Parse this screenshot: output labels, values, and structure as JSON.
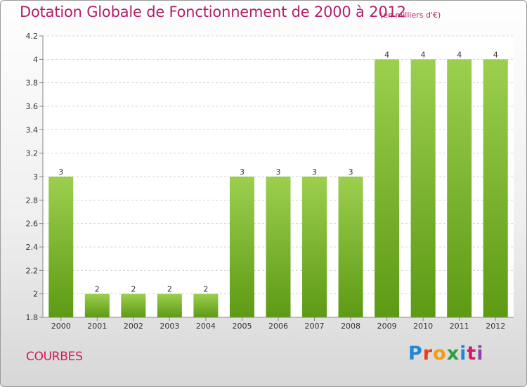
{
  "header": {
    "title": "Dotation Globale de Fonctionnement de 2000 à 2012",
    "unit": "(en milliers d'€)"
  },
  "commune": "COURBES",
  "logo": {
    "text": "Proxiti",
    "colors": [
      "#1e88d6",
      "#e8401c",
      "#f39c12",
      "#2e9e3e",
      "#1e88d6",
      "#d81b60",
      "#8e44ad"
    ]
  },
  "chart_data": {
    "type": "bar",
    "title": "Dotation Globale de Fonctionnement de 2000 à 2012",
    "subtitle": "(en milliers d'€)",
    "xlabel": "",
    "ylabel": "",
    "categories": [
      "2000",
      "2001",
      "2002",
      "2003",
      "2004",
      "2005",
      "2006",
      "2007",
      "2008",
      "2009",
      "2010",
      "2011",
      "2012"
    ],
    "values": [
      3,
      2,
      2,
      2,
      2,
      3,
      3,
      3,
      3,
      4,
      4,
      4,
      4
    ],
    "data_labels": [
      "3",
      "2",
      "2",
      "2",
      "2",
      "3",
      "3",
      "3",
      "3",
      "4",
      "4",
      "4",
      "4"
    ],
    "ylim": [
      1.8,
      4.2
    ],
    "yticks": [
      1.8,
      2,
      2.2,
      2.4,
      2.6,
      2.8,
      3,
      3.2,
      3.4,
      3.6,
      3.8,
      4,
      4.2
    ],
    "ytick_labels": [
      "1.8",
      "2",
      "2.2",
      "2.4",
      "2.6",
      "2.8",
      "3",
      "3.2",
      "3.4",
      "3.6",
      "3.8",
      "4",
      "4.2"
    ],
    "grid": true,
    "bar_color_top": "#9ccf4e",
    "bar_color_bottom": "#5d9a14"
  }
}
